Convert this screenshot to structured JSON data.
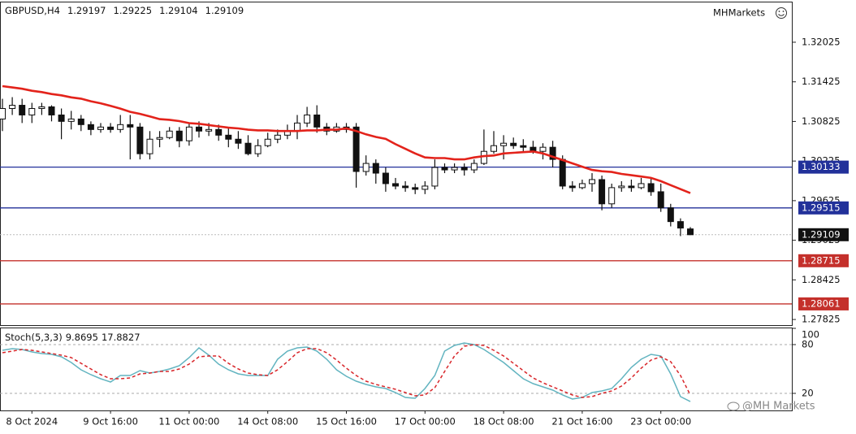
{
  "chart_data": {
    "type": "candlestick",
    "symbol": "GBPUSD,H4",
    "brand": "MHMarkets",
    "watermark": "@MH Markets",
    "categories": [
      null,
      null,
      null,
      "8 Oct 2024",
      null,
      null,
      null,
      null,
      null,
      null,
      null,
      "9 Oct 16:00",
      null,
      null,
      null,
      null,
      null,
      null,
      null,
      "11 Oct 00:00",
      null,
      null,
      null,
      null,
      null,
      null,
      null,
      "14 Oct 08:00",
      null,
      null,
      null,
      null,
      null,
      null,
      null,
      "15 Oct 16:00",
      null,
      null,
      null,
      null,
      null,
      null,
      null,
      "17 Oct 00:00",
      null,
      null,
      null,
      null,
      null,
      null,
      null,
      "18 Oct 08:00",
      null,
      null,
      null,
      null,
      null,
      null,
      null,
      "21 Oct 16:00",
      null,
      null,
      null,
      null,
      null,
      null,
      null,
      "23 Oct 00:00",
      null,
      null,
      null
    ],
    "open": [
      1.30862,
      1.31021,
      1.3107,
      1.30923,
      1.31021,
      1.31046,
      1.30923,
      1.30826,
      1.30862,
      1.30777,
      1.30703,
      1.3074,
      1.30703,
      1.30777,
      1.3074,
      1.30336,
      1.30556,
      1.30581,
      1.30679,
      1.30532,
      1.3074,
      1.30679,
      1.30703,
      1.30617,
      1.30556,
      1.30495,
      1.30336,
      1.30458,
      1.30556,
      1.30617,
      1.30679,
      1.30801,
      1.30923,
      1.3074,
      1.30679,
      1.3074,
      1.3074,
      1.30067,
      1.30189,
      1.30042,
      1.29883,
      1.29846,
      1.29822,
      1.29797,
      1.29846,
      1.30128,
      1.30091,
      1.30128,
      1.30091,
      1.30189,
      1.30372,
      1.30458,
      1.30495,
      1.30458,
      1.30434,
      1.30372,
      1.30434,
      1.3025,
      1.29846,
      1.29822,
      1.29883,
      1.29944,
      1.29577,
      1.29822,
      1.29846,
      1.29822,
      1.29883,
      1.2976,
      1.29516,
      1.29308,
      1.29197
    ],
    "high": [
      1.31168,
      1.31193,
      1.31168,
      1.31107,
      1.31107,
      1.3107,
      1.31021,
      1.30985,
      1.30923,
      1.30826,
      1.30801,
      1.30801,
      1.30923,
      1.30923,
      1.30801,
      1.30679,
      1.30679,
      1.3074,
      1.3074,
      1.30801,
      1.30826,
      1.30801,
      1.30777,
      1.3074,
      1.30679,
      1.30617,
      1.30556,
      1.30654,
      1.30703,
      1.30777,
      1.30923,
      1.31046,
      1.3107,
      1.30801,
      1.30801,
      1.30801,
      1.30801,
      1.30311,
      1.3025,
      1.30128,
      1.29969,
      1.2992,
      1.29883,
      1.2992,
      1.3025,
      1.30189,
      1.30189,
      1.30189,
      1.3025,
      1.30703,
      1.30679,
      1.30617,
      1.30581,
      1.30556,
      1.30532,
      1.30495,
      1.30532,
      1.30311,
      1.2992,
      1.29944,
      1.30042,
      1.30005,
      1.29883,
      1.2992,
      1.29944,
      1.29969,
      1.29969,
      1.29883,
      1.29577,
      1.29357,
      1.29225
    ],
    "low": [
      1.30679,
      1.30923,
      1.30801,
      1.30801,
      1.30923,
      1.30826,
      1.30556,
      1.30703,
      1.30679,
      1.30617,
      1.30654,
      1.30654,
      1.30654,
      1.3025,
      1.3025,
      1.3025,
      1.30434,
      1.30556,
      1.30434,
      1.30458,
      1.30581,
      1.30605,
      1.30532,
      1.30434,
      1.30409,
      1.30311,
      1.30287,
      1.30434,
      1.30495,
      1.30556,
      1.30556,
      1.3074,
      1.30654,
      1.30617,
      1.30654,
      1.30654,
      1.29822,
      1.30005,
      1.29883,
      1.2976,
      1.29797,
      1.2976,
      1.29724,
      1.29724,
      1.29797,
      1.30042,
      1.30042,
      1.30005,
      1.30042,
      1.30165,
      1.30336,
      1.3025,
      1.30409,
      1.30372,
      1.30336,
      1.3025,
      1.30128,
      1.29797,
      1.2976,
      1.29797,
      1.2976,
      1.29479,
      1.29516,
      1.2976,
      1.2976,
      1.29797,
      1.29699,
      1.29455,
      1.29235,
      1.29088,
      1.29104
    ],
    "close": [
      1.31021,
      1.3107,
      1.30923,
      1.31021,
      1.31046,
      1.30923,
      1.30826,
      1.30862,
      1.30777,
      1.30703,
      1.3074,
      1.30703,
      1.30777,
      1.3074,
      1.30336,
      1.30556,
      1.30581,
      1.30679,
      1.30532,
      1.3074,
      1.30679,
      1.30703,
      1.30617,
      1.30556,
      1.30495,
      1.30336,
      1.30458,
      1.30556,
      1.30617,
      1.30679,
      1.30801,
      1.30923,
      1.3074,
      1.30679,
      1.3074,
      1.30703,
      1.30067,
      1.30189,
      1.30042,
      1.29883,
      1.29846,
      1.29822,
      1.29797,
      1.29846,
      1.30128,
      1.30091,
      1.30128,
      1.30091,
      1.30189,
      1.30372,
      1.30458,
      1.30495,
      1.30458,
      1.30434,
      1.30372,
      1.30434,
      1.3025,
      1.29846,
      1.29822,
      1.29883,
      1.29944,
      1.29577,
      1.29822,
      1.29846,
      1.29822,
      1.29883,
      1.2976,
      1.29516,
      1.29308,
      1.2921,
      1.29109
    ],
    "ma": {
      "color": "#e3231b",
      "values": [
        1.3136,
        1.3134,
        1.3132,
        1.3129,
        1.3127,
        1.3124,
        1.3122,
        1.3119,
        1.3117,
        1.3113,
        1.311,
        1.3106,
        1.3102,
        1.3097,
        1.3094,
        1.309,
        1.3086,
        1.3085,
        1.3083,
        1.308,
        1.3079,
        1.3077,
        1.3075,
        1.3073,
        1.3072,
        1.307,
        1.3069,
        1.3069,
        1.3068,
        1.3068,
        1.3068,
        1.3069,
        1.3069,
        1.307,
        1.307,
        1.3072,
        1.3068,
        1.3063,
        1.3059,
        1.3056,
        1.3048,
        1.3041,
        1.3034,
        1.3028,
        1.3027,
        1.3027,
        1.3025,
        1.3025,
        1.3028,
        1.303,
        1.3031,
        1.3034,
        1.3035,
        1.3036,
        1.3037,
        1.3034,
        1.3029,
        1.3024,
        1.3019,
        1.3014,
        1.3009,
        1.3007,
        1.3006,
        1.3003,
        1.3001,
        1.2999,
        1.2997,
        1.2992,
        1.2986,
        1.298,
        1.2974
      ]
    },
    "levels": [
      {
        "value": 1.30133,
        "color": "#22319a"
      },
      {
        "value": 1.29515,
        "color": "#22319a"
      },
      {
        "value": 1.28715,
        "color": "#c4302b"
      },
      {
        "value": 1.28061,
        "color": "#c4302b"
      }
    ],
    "ylim": [
      1.2774,
      1.3264
    ],
    "yticks": [
      1.27825,
      1.28425,
      1.29025,
      1.29625,
      1.30225,
      1.30825,
      1.31425,
      1.32025
    ],
    "stoch": {
      "title": "Stoch(5,3,3)",
      "ylim": [
        0,
        100
      ],
      "yticks": [
        20,
        80,
        100
      ],
      "levels": [
        20,
        80
      ],
      "series": [
        {
          "color": "#62b4c0",
          "dashed": false,
          "values": [
            73,
            75,
            74,
            71,
            69,
            68,
            65,
            58,
            49,
            43,
            38,
            34,
            42,
            42,
            48,
            45,
            47,
            50,
            54,
            64,
            76,
            67,
            56,
            49,
            44,
            42,
            42,
            42,
            62,
            72,
            76,
            77,
            72,
            62,
            49,
            41,
            35,
            31,
            28,
            26,
            21,
            15,
            14,
            26,
            42,
            72,
            79,
            82,
            80,
            74,
            66,
            58,
            48,
            38,
            32,
            28,
            24,
            18,
            13,
            15,
            21,
            23,
            26,
            38,
            52,
            62,
            68,
            66,
            44,
            16,
            9.8695
          ]
        },
        {
          "color": "#d8262a",
          "dashed": true,
          "values": [
            70,
            72,
            74,
            73,
            71,
            69,
            67,
            64,
            57,
            50,
            43,
            38,
            38,
            39,
            44,
            45,
            47,
            47,
            50,
            56,
            65,
            66,
            66,
            57,
            50,
            45,
            43,
            42,
            49,
            59,
            70,
            75,
            75,
            70,
            61,
            51,
            42,
            35,
            31,
            28,
            25,
            21,
            17,
            18,
            27,
            47,
            66,
            78,
            80,
            79,
            73,
            66,
            57,
            48,
            39,
            33,
            28,
            23,
            18,
            15,
            16,
            20,
            23,
            29,
            39,
            51,
            61,
            65,
            59,
            42,
            17.8827
          ]
        }
      ]
    }
  }
}
